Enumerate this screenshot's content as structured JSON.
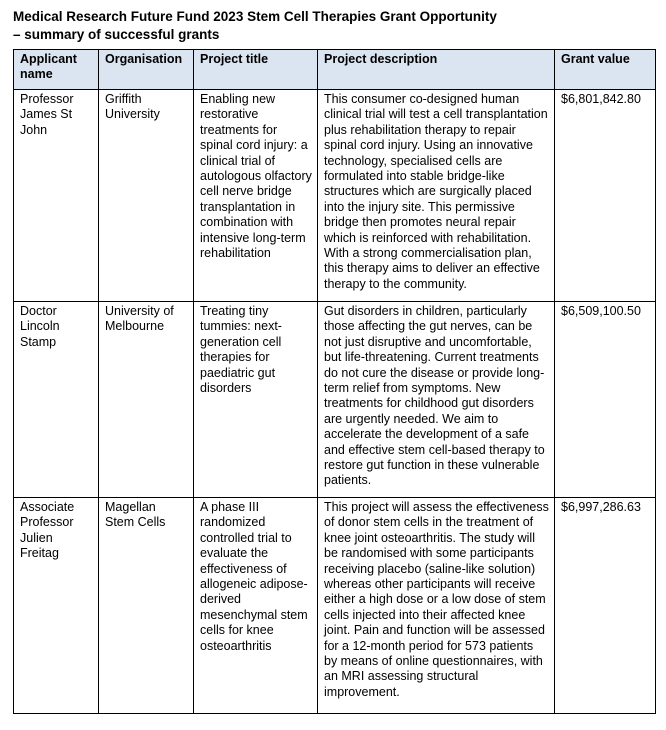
{
  "title": {
    "line1": "Medical Research Future Fund 2023 Stem Cell Therapies Grant Opportunity",
    "line2": "– summary of successful grants"
  },
  "colors": {
    "header_bg": "#DBE5F1",
    "border": "#000000",
    "text": "#000000"
  },
  "table": {
    "headers": [
      "Applicant name",
      "Organisation",
      "Project title",
      "Project description",
      "Grant value"
    ],
    "rows": [
      {
        "applicant_name": "Professor James St John",
        "organisation": "Griffith University",
        "project_title": "Enabling new restorative treatments for spinal cord injury: a clinical trial of autologous olfactory cell nerve bridge transplantation in combination with intensive long-term rehabilitation",
        "project_description": "This consumer co-designed human clinical trial will test a cell transplantation plus rehabilitation therapy to repair spinal cord injury. Using an innovative technology, specialised cells are formulated into stable bridge-like structures which are surgically placed into the injury site. This permissive bridge then promotes neural repair which is reinforced with rehabilitation. With a strong commercialisation plan, this therapy aims to deliver an effective therapy to the community.",
        "grant_value": "$6,801,842.80"
      },
      {
        "applicant_name": "Doctor Lincoln Stamp",
        "organisation": "University of Melbourne",
        "project_title": "Treating tiny tummies: next-generation cell therapies for paediatric gut disorders",
        "project_description": "Gut disorders in children, particularly those affecting the gut nerves, can be not just disruptive and uncomfortable, but life-threatening. Current treatments do not cure the disease or provide long-term relief from symptoms. New treatments for childhood gut disorders are urgently needed. We aim to accelerate the development of a safe and effective stem cell-based therapy to restore gut function in these vulnerable patients.",
        "grant_value": "$6,509,100.50"
      },
      {
        "applicant_name": "Associate Professor Julien Freitag",
        "organisation": "Magellan Stem Cells",
        "project_title": "A phase III randomized controlled trial to evaluate the effectiveness of allogeneic adipose-derived mesenchymal stem cells for knee osteoarthritis",
        "project_description": "This project will assess the effectiveness of donor stem cells in the treatment of knee joint osteoarthritis. The study will be randomised with some participants receiving placebo (saline-like solution) whereas other participants will receive either a high dose or a low dose of stem cells injected into their affected knee joint. Pain and function will be assessed for a 12-month period for 573 patients by means of online questionnaires, with an MRI assessing structural improvement.",
        "grant_value": "$6,997,286.63"
      }
    ]
  }
}
